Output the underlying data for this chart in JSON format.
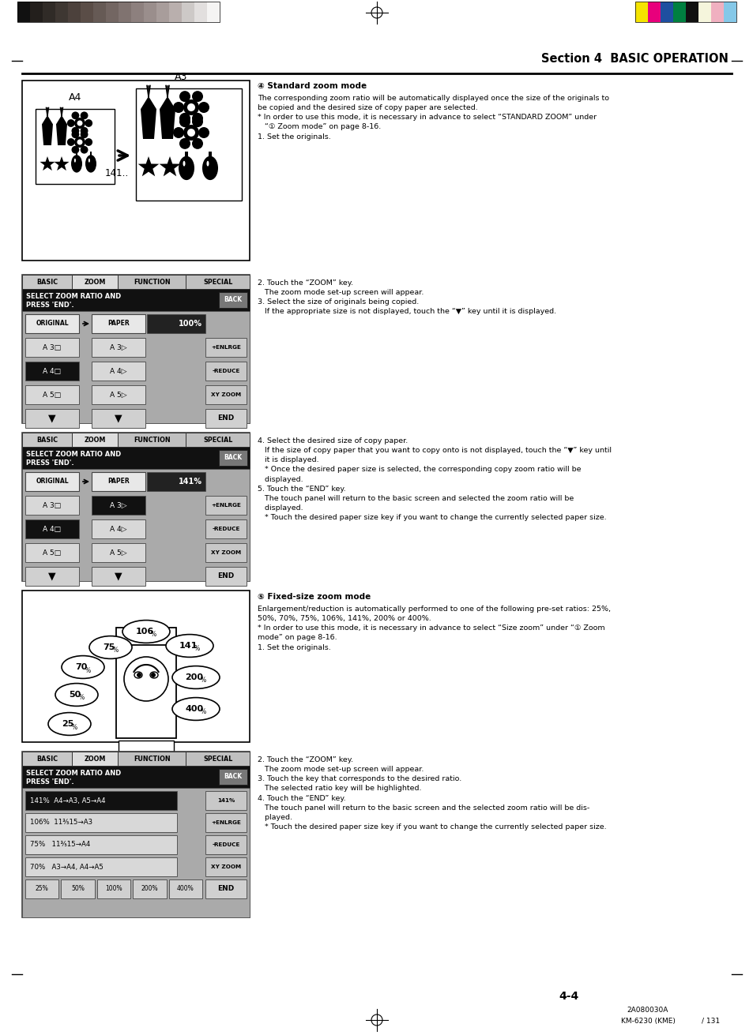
{
  "page_width": 9.54,
  "page_height": 13.11,
  "background_color": "#ffffff",
  "header_strip_colors_left": [
    "#111111",
    "#231f1c",
    "#302b27",
    "#3e3732",
    "#4c413c",
    "#5a4d47",
    "#665a55",
    "#736662",
    "#807370",
    "#8d807e",
    "#9a8e8c",
    "#a89d9b",
    "#b9afad",
    "#cdc9c7",
    "#e2dfde",
    "#f5f4f3"
  ],
  "header_strip_colors_right": [
    "#f5e400",
    "#e8007c",
    "#1e4fa0",
    "#008040",
    "#111111",
    "#f5f5dc",
    "#f0b0c0",
    "#85c8e8"
  ],
  "section_title": "Section 4  BASIC OPERATION",
  "section3_title": "④ Standard zoom mode",
  "section3_body": "The corresponding zoom ratio will be automatically displayed once the size of the originals to\nbe copied and the desired size of copy paper are selected.\n* In order to use this mode, it is necessary in advance to select “STANDARD ZOOM” under\n   “① Zoom mode” on page 8-16.\n1. Set the originals.",
  "section3_step2": "2. Touch the “ZOOM” key.\n   The zoom mode set-up screen will appear.\n3. Select the size of originals being copied.\n   If the appropriate size is not displayed, touch the “▼” key until it is displayed.",
  "section3_step4": "4. Select the desired size of copy paper.\n   If the size of copy paper that you want to copy onto is not displayed, touch the “▼” key until\n   it is displayed.\n   * Once the desired paper size is selected, the corresponding copy zoom ratio will be\n   displayed.\n5. Touch the “END” key.\n   The touch panel will return to the basic screen and selected the zoom ratio will be\n   displayed.\n   * Touch the desired paper size key if you want to change the currently selected paper size.",
  "section4_title": "⑤ Fixed-size zoom mode",
  "section4_body": "Enlargement/reduction is automatically performed to one of the following pre-set ratios: 25%,\n50%, 70%, 75%, 106%, 141%, 200% or 400%.\n* In order to use this mode, it is necessary in advance to select “Size zoom” under “① Zoom\nmode” on page 8-16.\n1. Set the originals.",
  "section4_step2": "2. Touch the “ZOOM” key.\n   The zoom mode set-up screen will appear.\n3. Touch the key that corresponds to the desired ratio.\n   The selected ratio key will be highlighted.\n4. Touch the “END” key.\n   The touch panel will return to the basic screen and the selected zoom ratio will be dis-\n   played.\n   * Touch the desired paper size key if you want to change the currently selected paper size.",
  "page_number": "4-4",
  "footer_code": "2A080030A",
  "footer_model": "KM-6230 (KME)",
  "footer_page": "/ 131"
}
